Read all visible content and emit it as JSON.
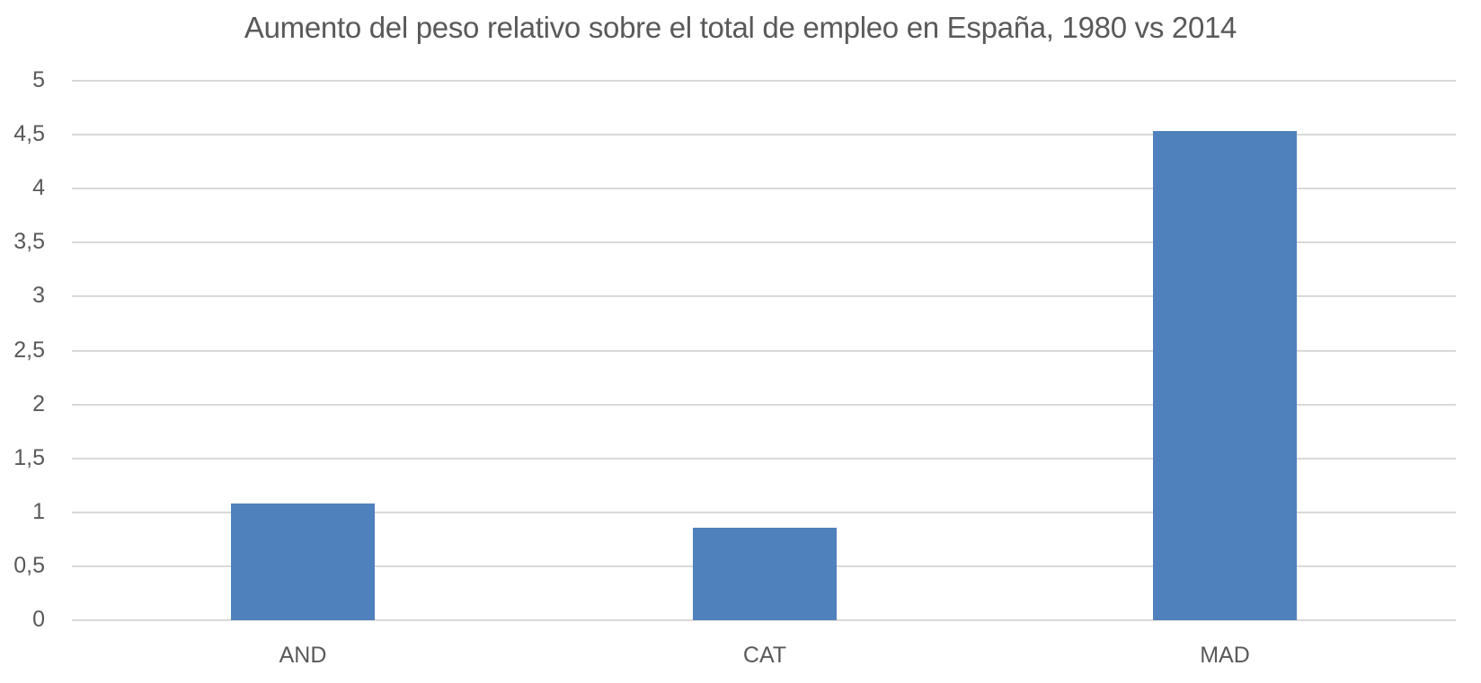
{
  "chart_data": {
    "type": "bar",
    "title": "Aumento del peso relativo sobre el total de empleo en España, 1980 vs 2014",
    "xlabel": "",
    "ylabel": "",
    "categories": [
      "AND",
      "CAT",
      "MAD"
    ],
    "values": [
      1.08,
      0.86,
      4.53
    ],
    "ylim": [
      0,
      5
    ],
    "yticks": [
      "0",
      "0,5",
      "1",
      "1,5",
      "2",
      "2,5",
      "3",
      "3,5",
      "4",
      "4,5",
      "5"
    ],
    "grid": true,
    "legend": null,
    "bar_color": "#4f81bd"
  }
}
